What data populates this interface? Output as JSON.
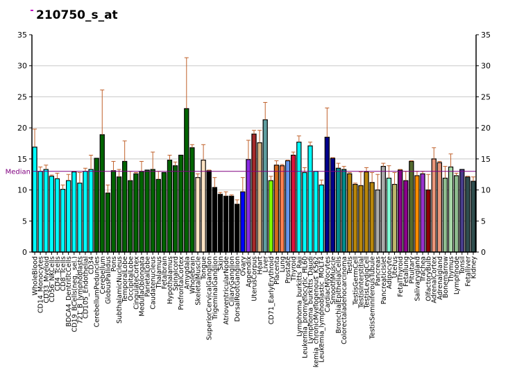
{
  "chart_data": {
    "type": "bar",
    "title": "210750_s_at",
    "xlabel": "",
    "ylabel": "",
    "ylim": [
      0,
      35
    ],
    "yticks": [
      0,
      5,
      10,
      15,
      20,
      25,
      30,
      35
    ],
    "grid": true,
    "median": 13.0,
    "median_label": "Median",
    "categories": [
      "WholeBlood",
      "CD14_Monocytes",
      "CD33_Myeloid",
      "CD56_NKCells",
      "CD4_Tcells",
      "CD8_Tcells",
      "BDCA4_DentriticCells",
      "CD19_BCells(neg._sel.)",
      "721_B_lymphoblasts",
      "CD105_Endothelial",
      "CD34",
      "CerebellumPeduncles",
      "Cerebellum",
      "GlobusPallidus",
      "Pons",
      "SubthalamicNucleus",
      "TemporalLobe",
      "OccipitalLobe",
      "CingulateCortex",
      "MedullaOblongata",
      "ParietalLobe",
      "Caudatenucleus",
      "Thalamus",
      "Fetalbrain",
      "Hypothalamus",
      "Spinalcord",
      "PrefrontalCortex",
      "Amygdala",
      "Wholebrain",
      "SkeletalMuscle",
      "Tongue",
      "SuperiorCervicalGanglion",
      "TrigeminalGanglion",
      "Skin",
      "AtrioventricularNode",
      "CiliaryGanglion",
      "DorsalRootGanglion",
      "Ovary",
      "Appendix",
      "UterusCorpus",
      "Heart",
      "Liver",
      "CD71_EarlyErythroid",
      "Placenta",
      "Lung",
      "Prostate",
      "Thyroid",
      "Lymphoma_burkitts_Raji",
      "Leukemia_promyelocytic_HL60",
      "Lymphoma_burkitts_Daudi",
      "Leukemia_chronicMyelogenous_K562",
      "Leukemia_lymphoblastic_MOLT4",
      "CardiacMyocytes",
      "SmoothMuscle",
      "BronchialEpithelialCells",
      "Colorectaladenocarcinoma",
      "Testis",
      "TestisGermCell",
      "TestisInterstitial",
      "TestisLeydigCell",
      "TestisSeminiferousTubule",
      "Pancreas",
      "PancreaticIslet",
      "Adipocyte",
      "Uterus",
      "FetalThyroid",
      "Fetallung",
      "Pituitary",
      "Salivarygland",
      "Trachea",
      "OlfactoryBulb",
      "AdrenalCortex",
      "Adrenalgland",
      "Bonemarrow",
      "Thymus",
      "Lymphnode",
      "Tonsil",
      "Fetalliver",
      "Kidney"
    ],
    "values": [
      16.9,
      13.0,
      13.3,
      12.2,
      11.8,
      10.1,
      11.5,
      12.9,
      11.1,
      13.0,
      13.3,
      15.1,
      18.9,
      9.5,
      13.1,
      12.1,
      14.6,
      11.5,
      12.6,
      13.0,
      13.2,
      13.3,
      11.7,
      12.8,
      14.8,
      13.9,
      15.6,
      23.1,
      16.8,
      12.0,
      14.8,
      13.1,
      10.4,
      9.3,
      9.0,
      9.0,
      7.7,
      9.7,
      14.9,
      19.0,
      17.6,
      21.3,
      11.5,
      14.0,
      13.9,
      14.7,
      15.6,
      17.7,
      12.8,
      17.1,
      13.0,
      10.8,
      18.5,
      15.1,
      13.5,
      13.3,
      12.6,
      10.9,
      10.7,
      12.9,
      11.2,
      10.0,
      13.8,
      11.9,
      10.9,
      13.2,
      11.5,
      14.6,
      12.3,
      12.6,
      10.0,
      15.0,
      14.4,
      11.9,
      13.7,
      12.3,
      13.3,
      12.1,
      11.4
    ],
    "error_upper": [
      19.8,
      13.7,
      14.0,
      12.4,
      12.7,
      10.8,
      12.5,
      13.0,
      12.8,
      13.5,
      15.6,
      15.1,
      26.1,
      10.8,
      14.6,
      13.3,
      17.9,
      13.0,
      12.8,
      14.6,
      13.2,
      16.1,
      13.0,
      12.8,
      15.6,
      14.5,
      15.6,
      31.3,
      17.3,
      12.6,
      17.3,
      13.2,
      12.0,
      9.6,
      9.7,
      9.2,
      8.4,
      12.0,
      18.0,
      19.6,
      19.6,
      24.1,
      12.2,
      14.7,
      14.1,
      14.8,
      16.1,
      18.7,
      13.6,
      17.7,
      13.0,
      11.6,
      23.2,
      15.2,
      14.3,
      13.8,
      12.8,
      11.1,
      12.9,
      13.6,
      12.8,
      12.5,
      14.3,
      13.9,
      12.8,
      13.3,
      13.0,
      14.7,
      13.0,
      13.0,
      12.5,
      16.8,
      14.6,
      13.8,
      15.8,
      12.7,
      13.3,
      12.2,
      12.1
    ],
    "colors": [
      "#00FFFF",
      "#00FFFF",
      "#00FFFF",
      "#00FFFF",
      "#00FFFF",
      "#00FFFF",
      "#00FFFF",
      "#00FFFF",
      "#00FFFF",
      "#00FFFF",
      "#00FFFF",
      "#006400",
      "#006400",
      "#006400",
      "#006400",
      "#006400",
      "#006400",
      "#006400",
      "#006400",
      "#006400",
      "#006400",
      "#006400",
      "#006400",
      "#006400",
      "#006400",
      "#006400",
      "#006400",
      "#006400",
      "#006400",
      "#FFE4C4",
      "#FFE4C4",
      "#000000",
      "#000000",
      "#000000",
      "#000000",
      "#000000",
      "#000000",
      "#0000FF",
      "#8A2BE2",
      "#A52A2A",
      "#DEB887",
      "#5F9EA0",
      "#7FFF00",
      "#D2691E",
      "#FF7F50",
      "#6495ED",
      "#DC143C",
      "#00FFFF",
      "#00FFFF",
      "#00FFFF",
      "#00FFFF",
      "#00FFFF",
      "#00008B",
      "#00008B",
      "#008B8B",
      "#008B8B",
      "#B8860B",
      "#B8860B",
      "#B8860B",
      "#B8860B",
      "#B8860B",
      "#A9A9A9",
      "#A9A9A9",
      "#7FFFD4",
      "#BDB76B",
      "#8B008B",
      "#8B008B",
      "#556B2F",
      "#FF8C00",
      "#9932CC",
      "#8B0000",
      "#E9967A",
      "#E9967A",
      "#8FBC8F",
      "#A8D8A8",
      "#8FBC8F",
      "#483D8B",
      "#2F4F4F",
      "#2F4F4F"
    ],
    "error_color": "#C0602A",
    "median_color": "#800080"
  }
}
